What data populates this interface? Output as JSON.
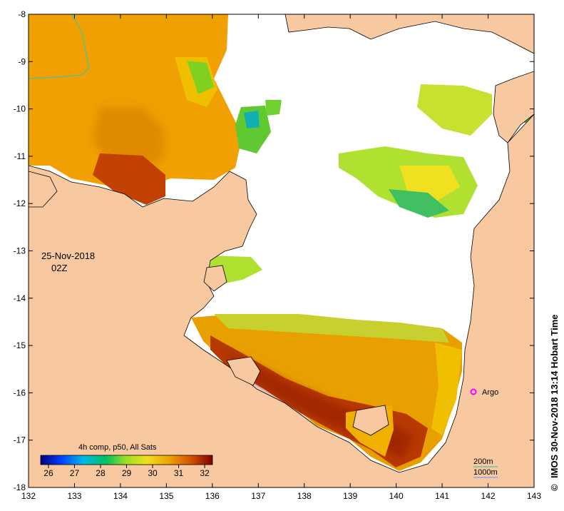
{
  "map": {
    "x_ticks": [
      "132",
      "133",
      "134",
      "135",
      "136",
      "137",
      "138",
      "139",
      "140",
      "141",
      "142",
      "143"
    ],
    "y_ticks": [
      "-8",
      "-9",
      "-10",
      "-11",
      "-12",
      "-13",
      "-14",
      "-15",
      "-16",
      "-17",
      "-18"
    ],
    "date": "25-Nov-2018",
    "time": "02Z",
    "colorbar_title": "4h comp, p50, All Sats",
    "colorbar_ticks": [
      "26",
      "27",
      "28",
      "29",
      "30",
      "31",
      "32"
    ],
    "colorbar_range": [
      25.7,
      32.3
    ],
    "colors": {
      "land": "#f8c8a0",
      "no_data": "#ffffff",
      "coast": "#000000",
      "contour": "#40c8a0"
    },
    "station_label": "Argo",
    "station_color": "#ff00ff",
    "depth_legend": [
      "200m",
      "1000m"
    ],
    "credit": "IMOS 30-Nov-2018 13:14 Hobart Time",
    "copyright_symbol": "©"
  }
}
